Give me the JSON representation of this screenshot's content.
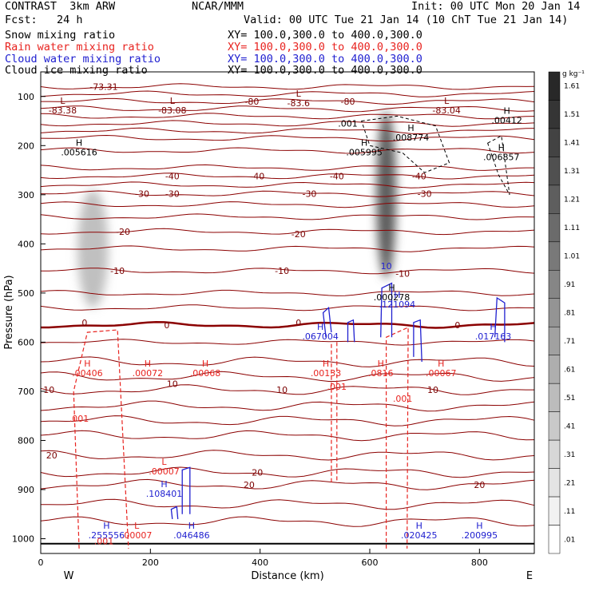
{
  "header": {
    "title": "CONTRAST  3km ARW",
    "center": "NCAR/MMM",
    "init": "Init: 00 UTC Mon 20 Jan 14",
    "fcst": "Fcst:   24 h",
    "valid": "Valid: 00 UTC Tue 21 Jan 14 (10 ChT Tue 21 Jan 14)"
  },
  "fields": [
    {
      "name": "Snow mixing ratio",
      "xy": "XY= 100.0,300.0 to 400.0,300.0",
      "color": "#000000"
    },
    {
      "name": "Rain water mixing ratio",
      "xy": "XY= 100.0,300.0 to 400.0,300.0",
      "color": "#e8231f"
    },
    {
      "name": "Cloud water mixing ratio",
      "xy": "XY= 100.0,300.0 to 400.0,300.0",
      "color": "#2020d0"
    },
    {
      "name": "Cloud ice mixing ratio",
      "xy": "XY= 100.0,300.0 to 400.0,300.0",
      "color": "#000000"
    }
  ],
  "colorbar": {
    "unit": "g kg⁻¹",
    "labels": [
      "1.61",
      "1.51",
      "1.41",
      "1.31",
      "1.21",
      "1.11",
      "1.01",
      ".91",
      ".81",
      ".71",
      ".61",
      ".51",
      ".41",
      ".31",
      ".21",
      ".11",
      ".01"
    ]
  },
  "chart_data": {
    "type": "cross-section contour",
    "xlabel": "Distance (km)",
    "ylabel": "Pressure (hPa)",
    "xlim": [
      0,
      900
    ],
    "ylim": [
      1030,
      50
    ],
    "x_ticks": [
      "0",
      "200",
      "400",
      "600",
      "800"
    ],
    "x_tick_values": [
      0,
      200,
      400,
      600,
      800
    ],
    "y_ticks": [
      "100",
      "200",
      "300",
      "400",
      "500",
      "600",
      "700",
      "800",
      "900",
      "1000"
    ],
    "y_tick_values": [
      100,
      200,
      300,
      400,
      500,
      600,
      700,
      800,
      900,
      1000
    ],
    "left_end_label": "W",
    "right_end_label": "E",
    "grid": false,
    "temperature_contour_labels": [
      {
        "text": "-73.31",
        "x": 115,
        "p": 80
      },
      {
        "text": "-80",
        "x": 385,
        "p": 110
      },
      {
        "text": "-80",
        "x": 560,
        "p": 110
      },
      {
        "text": "-40",
        "x": 240,
        "p": 262
      },
      {
        "text": "-40",
        "x": 395,
        "p": 262
      },
      {
        "text": "-40",
        "x": 540,
        "p": 262
      },
      {
        "text": "-40",
        "x": 690,
        "p": 262
      },
      {
        "text": "-30",
        "x": 185,
        "p": 298
      },
      {
        "text": "-30",
        "x": 240,
        "p": 298
      },
      {
        "text": "-30",
        "x": 490,
        "p": 298
      },
      {
        "text": "-30",
        "x": 700,
        "p": 298
      },
      {
        "text": "-20",
        "x": 150,
        "p": 375
      },
      {
        "text": "-20",
        "x": 470,
        "p": 380
      },
      {
        "text": "-10",
        "x": 140,
        "p": 455
      },
      {
        "text": "-10",
        "x": 440,
        "p": 455
      },
      {
        "text": "-10",
        "x": 660,
        "p": 460
      },
      {
        "text": "0",
        "x": 80,
        "p": 560
      },
      {
        "text": "0",
        "x": 230,
        "p": 565
      },
      {
        "text": "0",
        "x": 470,
        "p": 560
      },
      {
        "text": "0",
        "x": 760,
        "p": 565
      },
      {
        "text": "10",
        "x": 15,
        "p": 697
      },
      {
        "text": "10",
        "x": 240,
        "p": 685
      },
      {
        "text": "10",
        "x": 440,
        "p": 697
      },
      {
        "text": "10",
        "x": 715,
        "p": 697
      },
      {
        "text": "20",
        "x": 20,
        "p": 830
      },
      {
        "text": "20",
        "x": 395,
        "p": 865
      },
      {
        "text": "20",
        "x": 380,
        "p": 890
      },
      {
        "text": "20",
        "x": 800,
        "p": 890
      }
    ],
    "extrema": [
      {
        "kind": "L",
        "value": "-83.38",
        "x": 40,
        "p": 115,
        "color": "#7a0000"
      },
      {
        "kind": "L",
        "value": "-83.08",
        "x": 240,
        "p": 115,
        "color": "#7a0000"
      },
      {
        "kind": "L",
        "value": "-83.6",
        "x": 470,
        "p": 100,
        "color": "#7a0000"
      },
      {
        "kind": "L",
        "value": "-83.04",
        "x": 740,
        "p": 115,
        "color": "#7a0000"
      },
      {
        "kind": "H",
        "value": ".00412",
        "x": 850,
        "p": 135,
        "color": "#000000"
      },
      {
        "kind": "H",
        "value": ".005616",
        "x": 70,
        "p": 200,
        "color": "#000000"
      },
      {
        "kind": "H",
        "value": ".005995",
        "x": 590,
        "p": 200,
        "color": "#000000"
      },
      {
        "kind": "H",
        "value": ".008774",
        "x": 675,
        "p": 170,
        "color": "#000000"
      },
      {
        "kind": "H",
        "value": ".006857",
        "x": 840,
        "p": 210,
        "color": "#000000"
      },
      {
        "kind": "H",
        "value": ".000278",
        "x": 640,
        "p": 495,
        "color": "#000000"
      },
      {
        "kind": "H",
        "value": ".121094",
        "x": 650,
        "p": 510,
        "color": "#2020d0"
      },
      {
        "kind": "H",
        "value": ".067004",
        "x": 510,
        "p": 575,
        "color": "#2020d0"
      },
      {
        "kind": "H",
        "value": ".017163",
        "x": 825,
        "p": 575,
        "color": "#2020d0"
      },
      {
        "kind": "H",
        "value": ".00406",
        "x": 85,
        "p": 650,
        "color": "#e8231f"
      },
      {
        "kind": "H",
        "value": ".00072",
        "x": 195,
        "p": 650,
        "color": "#e8231f"
      },
      {
        "kind": "H",
        "value": ".00068",
        "x": 300,
        "p": 650,
        "color": "#e8231f"
      },
      {
        "kind": "H",
        "value": ".00133",
        "x": 520,
        "p": 650,
        "color": "#e8231f"
      },
      {
        "kind": "H",
        "value": ".0816",
        "x": 620,
        "p": 650,
        "color": "#e8231f"
      },
      {
        "kind": "H",
        "value": ".00067",
        "x": 730,
        "p": 650,
        "color": "#e8231f"
      },
      {
        "kind": "L",
        "value": ".00007",
        "x": 225,
        "p": 850,
        "color": "#e8231f"
      },
      {
        "kind": "H",
        "value": ".108401",
        "x": 225,
        "p": 895,
        "color": "#2020d0"
      },
      {
        "kind": "H",
        "value": ".255556",
        "x": 120,
        "p": 980,
        "color": "#2020d0"
      },
      {
        "kind": "L",
        "value": ".00007",
        "x": 175,
        "p": 980,
        "color": "#e8231f"
      },
      {
        "kind": "H",
        "value": ".046486",
        "x": 275,
        "p": 980,
        "color": "#2020d0"
      },
      {
        "kind": "H",
        "value": ".020425",
        "x": 690,
        "p": 980,
        "color": "#2020d0"
      },
      {
        "kind": "H",
        "value": ".200995",
        "x": 800,
        "p": 980,
        "color": "#2020d0"
      }
    ],
    "contour_value_labels": [
      {
        "text": ".001",
        "x": 560,
        "p": 155,
        "color": "#000000"
      },
      {
        "text": ".001",
        "x": 540,
        "p": 690,
        "color": "#e8231f"
      },
      {
        "text": ".001",
        "x": 660,
        "p": 715,
        "color": "#e8231f"
      },
      {
        "text": ".001",
        "x": 70,
        "p": 755,
        "color": "#e8231f"
      },
      {
        "text": ".001",
        "x": 115,
        "p": 1005,
        "color": "#e8231f"
      },
      {
        "text": "10",
        "x": 630,
        "p": 445,
        "color": "#2020d0"
      }
    ],
    "snow_regions": [
      {
        "x": 95,
        "p": 410,
        "rx": 28,
        "rp": 120,
        "max": 0.35
      },
      {
        "x": 630,
        "p": 300,
        "rx": 18,
        "rp": 170,
        "max": 0.9
      }
    ]
  }
}
